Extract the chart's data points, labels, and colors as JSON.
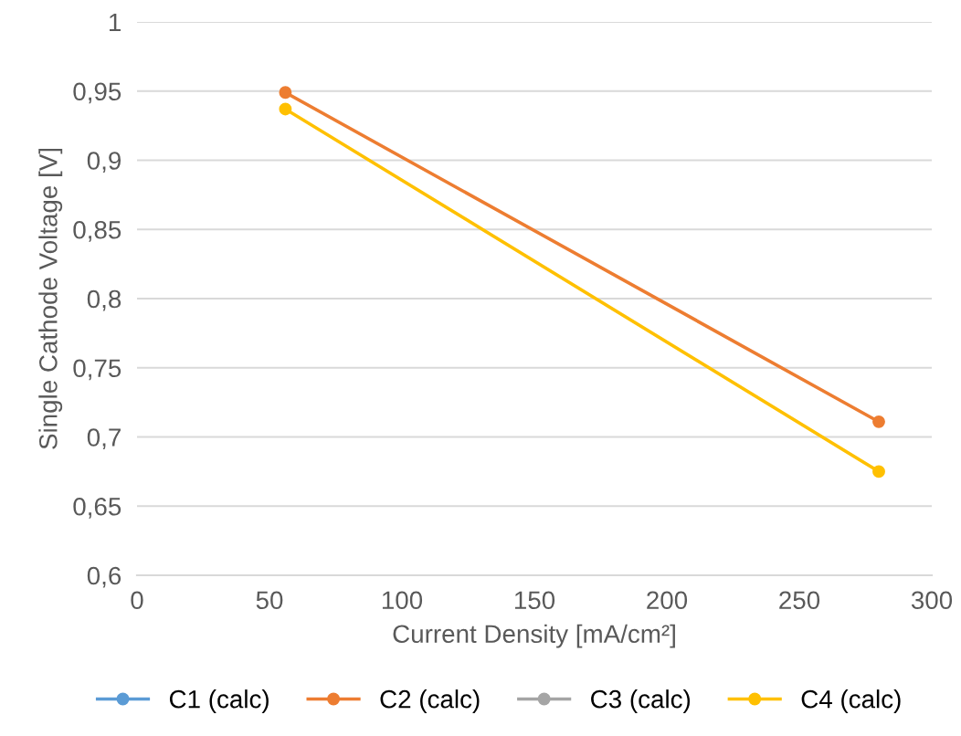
{
  "chart_data": {
    "type": "line",
    "xlabel": "Current Density [mA/cm²]",
    "ylabel": "Single Cathode Voltage [V]",
    "x": [
      56,
      280
    ],
    "series": [
      {
        "name": "C1 (calc)",
        "color": "#5b9bd5",
        "values": [
          null,
          null
        ]
      },
      {
        "name": "C2 (calc)",
        "color": "#ed7d31",
        "values": [
          0.949,
          0.711
        ]
      },
      {
        "name": "C3 (calc)",
        "color": "#a5a5a5",
        "values": [
          null,
          null
        ]
      },
      {
        "name": "C4 (calc)",
        "color": "#ffc000",
        "values": [
          0.937,
          0.675
        ]
      }
    ],
    "xlim": [
      0,
      300
    ],
    "xticks": [
      0,
      50,
      100,
      150,
      200,
      250,
      300
    ],
    "ylim": [
      0.6,
      1
    ],
    "yticks": [
      {
        "value": 0.6,
        "label": "0,6"
      },
      {
        "value": 0.65,
        "label": "0,65"
      },
      {
        "value": 0.7,
        "label": "0,7"
      },
      {
        "value": 0.75,
        "label": "0,75"
      },
      {
        "value": 0.8,
        "label": "0,8"
      },
      {
        "value": 0.85,
        "label": "0,85"
      },
      {
        "value": 0.9,
        "label": "0,9"
      },
      {
        "value": 0.95,
        "label": "0,95"
      },
      {
        "value": 1,
        "label": "1"
      }
    ],
    "grid": "y",
    "legend": "bottom",
    "marker": "circle",
    "line_style": "solid"
  }
}
